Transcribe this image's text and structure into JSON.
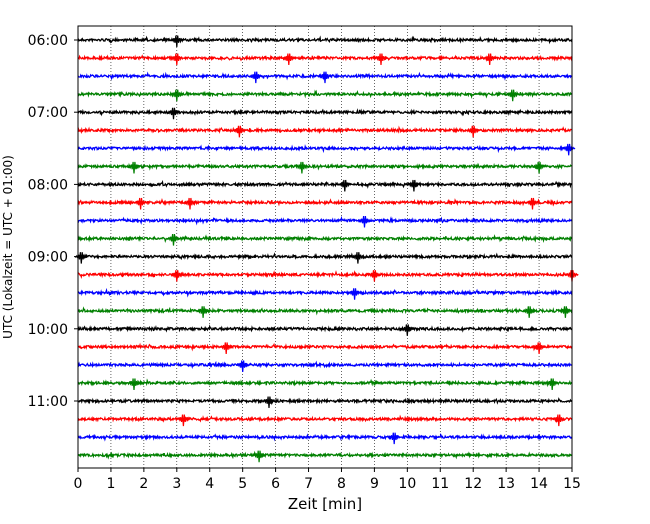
{
  "chart_data": {
    "type": "line",
    "title": "",
    "xlabel": "Zeit  [min]",
    "ylabel": "UTC (Lokalzeit = UTC + 01:00)",
    "xlim": [
      0,
      15
    ],
    "x_ticks": [
      "0",
      "1",
      "2",
      "3",
      "4",
      "5",
      "6",
      "7",
      "8",
      "9",
      "10",
      "11",
      "12",
      "13",
      "14",
      "15"
    ],
    "y_ticks": [
      "06:00",
      "07:00",
      "08:00",
      "09:00",
      "10:00",
      "11:00"
    ],
    "grid": "vertical dotted lines at each minute",
    "trace_colors": [
      "#000000",
      "#ff0000",
      "#0000ff",
      "#008000"
    ],
    "rows": [
      {
        "start": "06:00",
        "events": [
          3.0
        ]
      },
      {
        "start": "06:15",
        "events": [
          3.0,
          6.4,
          9.2,
          12.5
        ]
      },
      {
        "start": "06:30",
        "events": [
          5.4,
          7.5
        ]
      },
      {
        "start": "06:45",
        "events": [
          3.0,
          13.2
        ]
      },
      {
        "start": "07:00",
        "events": [
          2.9
        ]
      },
      {
        "start": "07:15",
        "events": [
          4.9,
          12.0
        ]
      },
      {
        "start": "07:30",
        "events": [
          14.9
        ]
      },
      {
        "start": "07:45",
        "events": [
          1.7,
          6.8,
          14.0
        ]
      },
      {
        "start": "08:00",
        "events": [
          8.1,
          10.2
        ]
      },
      {
        "start": "08:15",
        "events": [
          1.9,
          3.4,
          13.8
        ]
      },
      {
        "start": "08:30",
        "events": [
          8.7
        ]
      },
      {
        "start": "08:45",
        "events": [
          2.9
        ]
      },
      {
        "start": "09:00",
        "events": [
          0.1,
          8.5
        ]
      },
      {
        "start": "09:15",
        "events": [
          3.0,
          9.0,
          15.0
        ]
      },
      {
        "start": "09:30",
        "events": [
          8.4
        ]
      },
      {
        "start": "09:45",
        "events": [
          3.8,
          13.7,
          14.8
        ]
      },
      {
        "start": "10:00",
        "events": [
          10.0
        ]
      },
      {
        "start": "10:15",
        "events": [
          4.5,
          14.0
        ]
      },
      {
        "start": "10:30",
        "events": [
          5.0
        ]
      },
      {
        "start": "10:45",
        "events": [
          1.7,
          14.4
        ]
      },
      {
        "start": "11:00",
        "events": [
          5.8
        ]
      },
      {
        "start": "11:15",
        "events": [
          3.2,
          14.6
        ]
      },
      {
        "start": "11:30",
        "events": [
          9.6
        ]
      },
      {
        "start": "11:45",
        "events": [
          5.5
        ]
      }
    ]
  }
}
